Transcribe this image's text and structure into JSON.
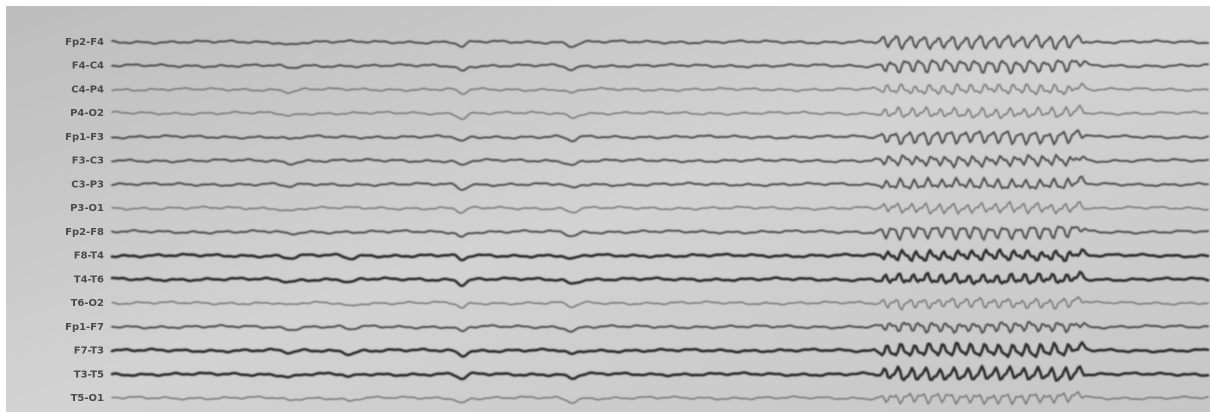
{
  "channels": [
    "Fp2-F4",
    "F4-C4",
    "C4-P4",
    "P4-O2",
    "Fp1-F3",
    "F3-C3",
    "C3-P3",
    "P3-O1",
    "Fp2-F8",
    "F8-T4",
    "T4-T6",
    "T6-O2",
    "Fp1-F7",
    "F7-T3",
    "T3-T5",
    "T5-O1"
  ]
}
